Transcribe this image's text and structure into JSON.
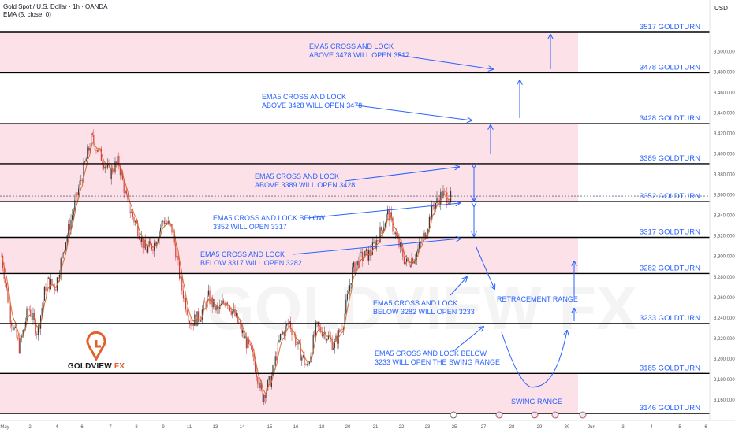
{
  "header": {
    "title": "Gold Spot / U.S. Dollar · 1h · OANDA",
    "indicator": "EMA (5, close, 0)"
  },
  "currency_label": "USD",
  "watermark": "GOLDVIEW FX",
  "logo": {
    "brand_main": "GOLDVIEW",
    "brand_accent": "FX",
    "icon": "goldview-g-icon"
  },
  "colors": {
    "zone_fill": "#fde1e8",
    "level_line": "#000000",
    "annotation_blue": "#2962ff",
    "candle_up": "#3a3a3a",
    "candle_down": "#d43d3d",
    "ema_line": "#d86f2e",
    "price_tag_bg": "#2a3a67"
  },
  "chart_data": {
    "type": "line",
    "title": "Gold Spot / U.S. Dollar · 1h · OANDA",
    "ylim": [
      3146,
      3520
    ],
    "y_ticks": [
      3160,
      3180,
      3200,
      3220,
      3240,
      3260,
      3280,
      3300,
      3320,
      3340,
      3360,
      3380,
      3400,
      3420,
      3440,
      3460,
      3480,
      3500
    ],
    "x_ticks": [
      "May",
      "2",
      "4",
      "6",
      "7",
      "8",
      "9",
      "11",
      "13",
      "14",
      "15",
      "16",
      "18",
      "20",
      "21",
      "22",
      "23",
      "25",
      "27",
      "28",
      "29",
      "30",
      "Jun",
      "3",
      "4",
      "5",
      "6"
    ],
    "grid": false,
    "current_price": 3358.125,
    "price_series": [
      {
        "x": "May 1",
        "y": 3300
      },
      {
        "x": "May 1",
        "y": 3240
      },
      {
        "x": "May 2",
        "y": 3210
      },
      {
        "x": "May 2",
        "y": 3250
      },
      {
        "x": "May 4",
        "y": 3225
      },
      {
        "x": "May 4",
        "y": 3275
      },
      {
        "x": "May 5",
        "y": 3270
      },
      {
        "x": "May 5",
        "y": 3310
      },
      {
        "x": "May 6",
        "y": 3345
      },
      {
        "x": "May 6",
        "y": 3380
      },
      {
        "x": "May 7",
        "y": 3415
      },
      {
        "x": "May 7",
        "y": 3398
      },
      {
        "x": "May 7",
        "y": 3380
      },
      {
        "x": "May 8",
        "y": 3392
      },
      {
        "x": "May 8",
        "y": 3350
      },
      {
        "x": "May 8",
        "y": 3330
      },
      {
        "x": "May 9",
        "y": 3305
      },
      {
        "x": "May 9",
        "y": 3312
      },
      {
        "x": "May 9",
        "y": 3335
      },
      {
        "x": "May 11",
        "y": 3325
      },
      {
        "x": "May 11",
        "y": 3270
      },
      {
        "x": "May 11",
        "y": 3235
      },
      {
        "x": "May 13",
        "y": 3240
      },
      {
        "x": "May 13",
        "y": 3260
      },
      {
        "x": "May 13",
        "y": 3245
      },
      {
        "x": "May 14",
        "y": 3258
      },
      {
        "x": "May 14",
        "y": 3240
      },
      {
        "x": "May 14",
        "y": 3220
      },
      {
        "x": "May 15",
        "y": 3200
      },
      {
        "x": "May 15",
        "y": 3162
      },
      {
        "x": "May 15",
        "y": 3180
      },
      {
        "x": "May 16",
        "y": 3220
      },
      {
        "x": "May 16",
        "y": 3235
      },
      {
        "x": "May 16",
        "y": 3210
      },
      {
        "x": "May 18",
        "y": 3190
      },
      {
        "x": "May 18",
        "y": 3230
      },
      {
        "x": "May 20",
        "y": 3225
      },
      {
        "x": "May 20",
        "y": 3212
      },
      {
        "x": "May 20",
        "y": 3235
      },
      {
        "x": "May 21",
        "y": 3285
      },
      {
        "x": "May 21",
        "y": 3298
      },
      {
        "x": "May 21",
        "y": 3302
      },
      {
        "x": "May 22",
        "y": 3320
      },
      {
        "x": "May 22",
        "y": 3342
      },
      {
        "x": "May 22",
        "y": 3315
      },
      {
        "x": "May 22",
        "y": 3292
      },
      {
        "x": "May 23",
        "y": 3300
      },
      {
        "x": "May 23",
        "y": 3318
      },
      {
        "x": "May 23",
        "y": 3348
      },
      {
        "x": "May 23",
        "y": 3360
      },
      {
        "x": "May 25",
        "y": 3356
      }
    ],
    "levels": [
      {
        "label": "3517 GOLDTURN",
        "value": 3517.965,
        "tag": "3,517.965"
      },
      {
        "label": "3478 GOLDTURN",
        "value": 3478.441,
        "tag": "3,478.441"
      },
      {
        "label": "3428 GOLDTURN",
        "value": 3428.798,
        "tag": "3,428.798"
      },
      {
        "label": "3389 GOLDTURN",
        "value": 3389.699,
        "tag": "3,389.699"
      },
      {
        "label": "3352 GOLDTURN",
        "value": 3352.741,
        "tag": "3,352.741"
      },
      {
        "label": "3317 GOLDTURN",
        "value": 3317.84,
        "tag": "3,317.840"
      },
      {
        "label": "3282 GOLDTURN",
        "value": 3282.535,
        "tag": "3,282.535"
      },
      {
        "label": "3233 GOLDTURN",
        "value": 3233.796,
        "tag": "3,233.796"
      },
      {
        "label": "3185 GOLDTURN",
        "value": 3185.057,
        "tag": "3,185.057"
      },
      {
        "label": "3146 GOLDTURN",
        "value": 3146.15,
        "tag": "3,146.150"
      }
    ],
    "current_tag": "3,358.125",
    "zones": [
      [
        3478.441,
        3517.965
      ],
      [
        3352.741,
        3428.798
      ],
      [
        3282.535,
        3317.84
      ],
      [
        3146.15,
        3185.057
      ]
    ],
    "annotations": [
      {
        "lines": [
          "EMA5 CROSS AND LOCK",
          "ABOVE 3478 WILL OPEN 3517"
        ]
      },
      {
        "lines": [
          "EMA5 CROSS AND LOCK",
          "ABOVE 3428 WILL OPEN 3478"
        ]
      },
      {
        "lines": [
          "EMA5 CROSS AND LOCK",
          "ABOVE 3389 WILL OPEN 3428"
        ]
      },
      {
        "lines": [
          "EMA5 CROSS AND LOCK BELOW",
          "3352 WILL OPEN 3317"
        ]
      },
      {
        "lines": [
          "EMA5 CROSS AND LOCK",
          "BELOW 3317 WILL OPEN 3282"
        ]
      },
      {
        "lines": [
          "EMA5 CROSS AND LOCK",
          "BELOW 3282 WILL OPEN 3233"
        ]
      },
      {
        "lines": [
          "EMA5 CROSS AND LOCK BELOW",
          "3233 WILL OPEN THE SWING RANGE"
        ]
      },
      {
        "lines": [
          "RETRACEMENT RANGE"
        ]
      },
      {
        "lines": [
          "SWING RANGE"
        ]
      }
    ]
  }
}
